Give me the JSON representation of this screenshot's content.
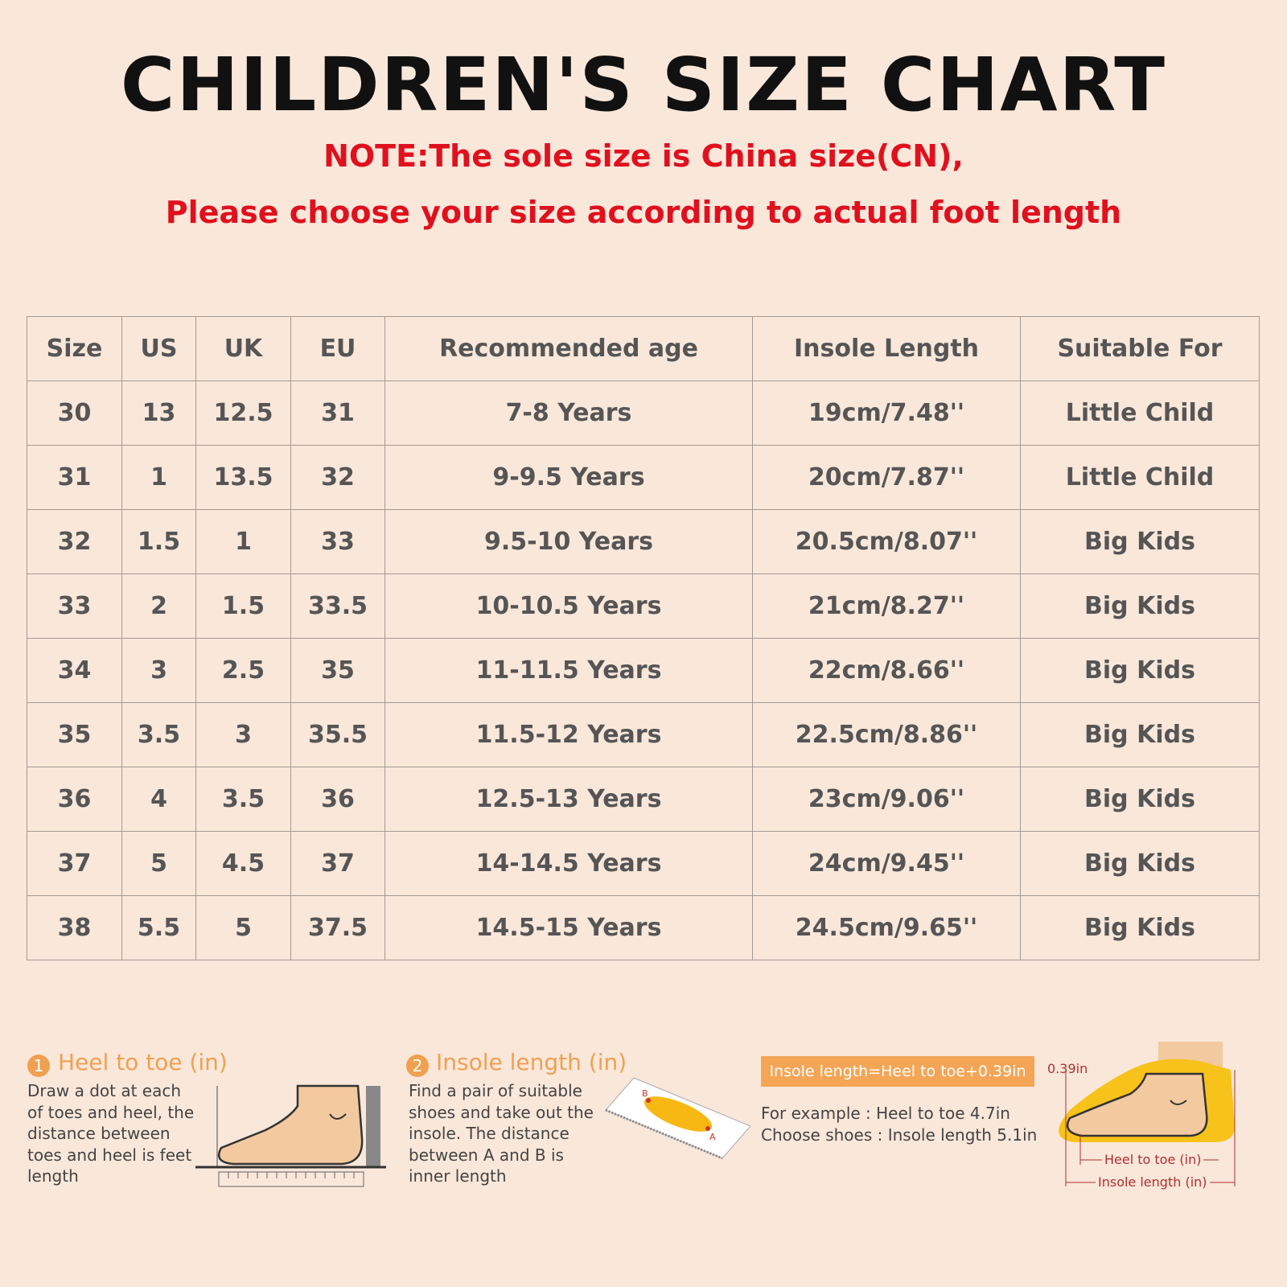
{
  "header": {
    "title": "CHILDREN'S SIZE CHART",
    "notes": [
      "NOTE:The sole size is China size(CN),",
      "Please choose your size according to actual foot length"
    ]
  },
  "table": {
    "columns": [
      "Size",
      "US",
      "UK",
      "EU",
      "Recommended age",
      "Insole Length",
      "Suitable For"
    ],
    "rows": [
      [
        "30",
        "13",
        "12.5",
        "31",
        "7-8 Years",
        "19cm/7.48''",
        "Little Child"
      ],
      [
        "31",
        "1",
        "13.5",
        "32",
        "9-9.5 Years",
        "20cm/7.87''",
        "Little Child"
      ],
      [
        "32",
        "1.5",
        "1",
        "33",
        "9.5-10 Years",
        "20.5cm/8.07''",
        "Big Kids"
      ],
      [
        "33",
        "2",
        "1.5",
        "33.5",
        "10-10.5 Years",
        "21cm/8.27''",
        "Big Kids"
      ],
      [
        "34",
        "3",
        "2.5",
        "35",
        "11-11.5 Years",
        "22cm/8.66''",
        "Big Kids"
      ],
      [
        "35",
        "3.5",
        "3",
        "35.5",
        "11.5-12 Years",
        "22.5cm/8.86''",
        "Big Kids"
      ],
      [
        "36",
        "4",
        "3.5",
        "36",
        "12.5-13 Years",
        "23cm/9.06''",
        "Big Kids"
      ],
      [
        "37",
        "5",
        "4.5",
        "37",
        "14-14.5 Years",
        "24cm/9.45''",
        "Big Kids"
      ],
      [
        "38",
        "5.5",
        "5",
        "37.5",
        "14.5-15 Years",
        "24.5cm/9.65''",
        "Big Kids"
      ]
    ]
  },
  "guide": {
    "steps": [
      {
        "number": "1",
        "title": "Heel to toe (in)",
        "text": "Draw a dot at each of toes and heel, the distance between toes and heel is feet length"
      },
      {
        "number": "2",
        "title": "Insole length (in)",
        "text": "Find a pair of suitable shoes and take out the insole. The distance between A and B is inner length",
        "point_b": "B",
        "point_a": "A"
      }
    ],
    "formula": "Insole length=Heel to toe+0.39in",
    "example": [
      "For example : Heel to toe  4.7in",
      "Choose shoes : Insole length 5.1in"
    ],
    "diagram": {
      "gap": "0.39in",
      "heel_to_toe": "Heel to toe (in)",
      "insole_length": "Insole length (in)"
    }
  }
}
